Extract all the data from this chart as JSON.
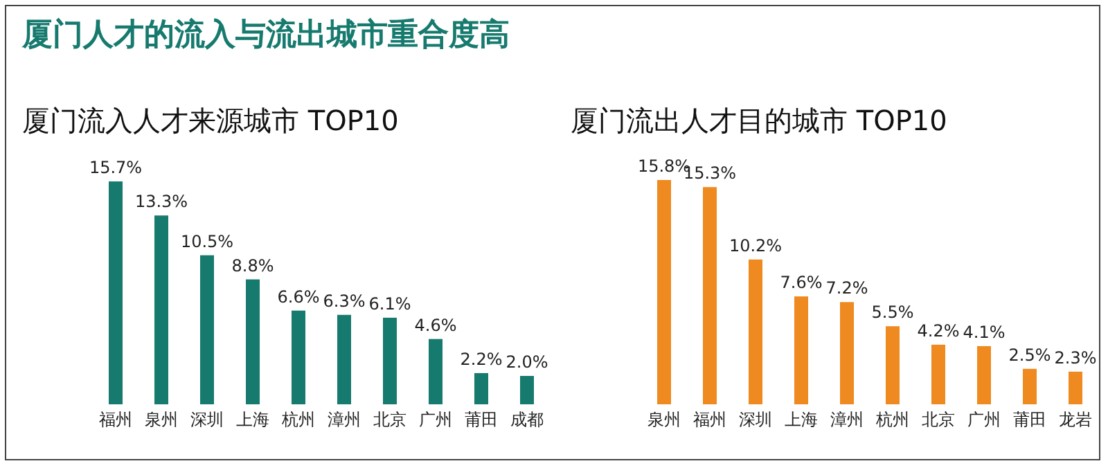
{
  "chart_data": [
    {
      "type": "bar",
      "title": "厦门流入人才来源城市 TOP10",
      "annotations": [
        "厦门人才的流入与流出城市重合度高"
      ],
      "categories": [
        "福州",
        "泉州",
        "深圳",
        "上海",
        "杭州",
        "漳州",
        "北京",
        "广州",
        "莆田",
        "成都"
      ],
      "values": [
        15.7,
        13.3,
        10.5,
        8.8,
        6.6,
        6.3,
        6.1,
        4.6,
        2.2,
        2.0
      ],
      "value_labels": [
        "15.7%",
        "13.3%",
        "10.5%",
        "8.8%",
        "6.6%",
        "6.3%",
        "6.1%",
        "4.6%",
        "2.2%",
        "2.0%"
      ],
      "color": "#167a6e"
    },
    {
      "type": "bar",
      "title": "厦门流出人才目的城市 TOP10",
      "categories": [
        "泉州",
        "福州",
        "深圳",
        "上海",
        "漳州",
        "杭州",
        "北京",
        "广州",
        "莆田",
        "龙岩"
      ],
      "values": [
        15.8,
        15.3,
        10.2,
        7.6,
        7.2,
        5.5,
        4.2,
        4.1,
        2.5,
        2.3
      ],
      "value_labels": [
        "15.8%",
        "15.3%",
        "10.2%",
        "7.6%",
        "7.2%",
        "5.5%",
        "4.2%",
        "4.1%",
        "2.5%",
        "2.3%"
      ],
      "color": "#ee8a1f"
    }
  ]
}
